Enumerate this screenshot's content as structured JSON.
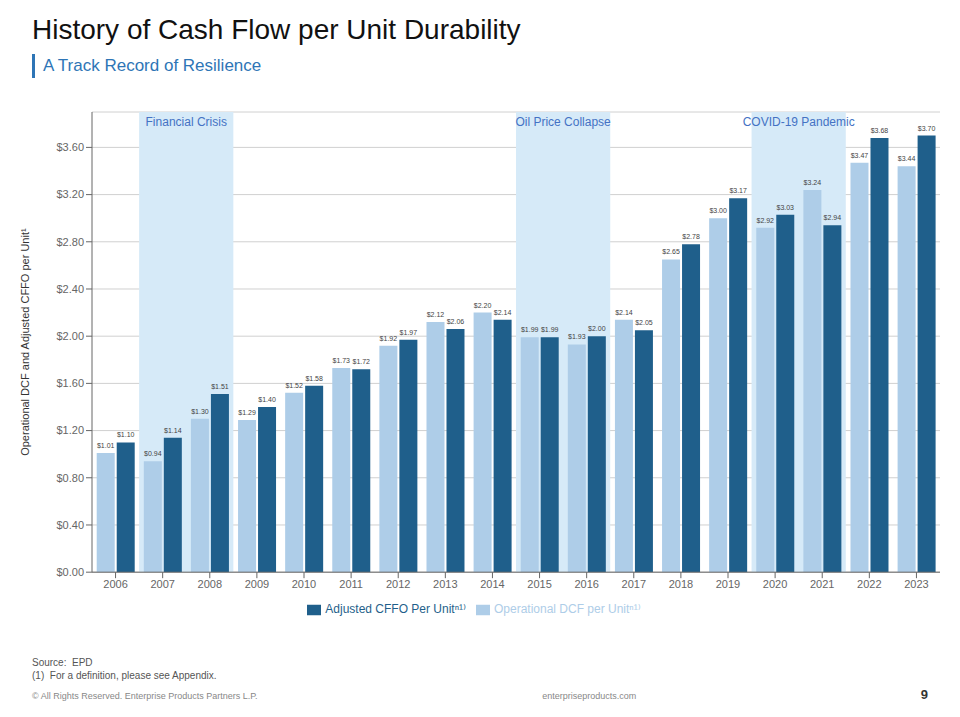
{
  "chart_data": {
    "type": "bar",
    "title": "History of Cash Flow per Unit Durability",
    "subtitle": "A Track Record of Resilience",
    "y_label": "Operational DCF and Adjusted CFFO per Unit¹",
    "categories": [
      "2006",
      "2007",
      "2008",
      "2009",
      "2010",
      "2011",
      "2012",
      "2013",
      "2014",
      "2015",
      "2016",
      "2017",
      "2018",
      "2019",
      "2020",
      "2021",
      "2022",
      "2023"
    ],
    "series": [
      {
        "name": "Operational DCF per Unitⁿ¹⁾",
        "color": "#aecde8",
        "values": [
          1.01,
          0.94,
          1.3,
          1.29,
          1.52,
          1.73,
          1.92,
          2.12,
          2.2,
          1.99,
          1.93,
          2.14,
          2.65,
          3.0,
          2.92,
          3.24,
          3.47,
          3.44
        ],
        "value_labels": [
          "$1.01",
          "$0.94",
          "$1.30",
          "$1.29",
          "$1.52",
          "$1.73",
          "$1.92",
          "$2.12",
          "$2.20",
          "$1.99",
          "$1.93",
          "$2.14",
          "$2.65",
          "$3.00",
          "$2.92",
          "$3.24",
          "$3.47",
          "$3.44"
        ]
      },
      {
        "name": "Adjusted CFFO Per Unitⁿ¹⁾",
        "color": "#1f5f8b",
        "values": [
          1.1,
          1.14,
          1.51,
          1.4,
          1.58,
          1.72,
          1.97,
          2.06,
          2.14,
          1.99,
          2.0,
          2.05,
          2.78,
          3.17,
          3.03,
          2.94,
          3.68,
          3.7
        ],
        "value_labels": [
          "$1.10",
          "$1.14",
          "$1.51",
          "$1.40",
          "$1.58",
          "$1.72",
          "$1.97",
          "$2.06",
          "$2.14",
          "$1.99",
          "$2.00",
          "$2.05",
          "$2.78",
          "$3.17",
          "$3.03",
          "$2.94",
          "$3.68",
          "$3.70"
        ]
      }
    ],
    "ylim": [
      0,
      3.9
    ],
    "yticks": [
      {
        "value": 0.0,
        "label": "$0.00"
      },
      {
        "value": 0.4,
        "label": "$0.40"
      },
      {
        "value": 0.8,
        "label": "$0.80"
      },
      {
        "value": 1.2,
        "label": "$1.20"
      },
      {
        "value": 1.6,
        "label": "$1.60"
      },
      {
        "value": 2.0,
        "label": "$2.00"
      },
      {
        "value": 2.4,
        "label": "$2.40"
      },
      {
        "value": 2.8,
        "label": "$2.80"
      },
      {
        "value": 3.2,
        "label": "$3.20"
      },
      {
        "value": 3.6,
        "label": "$3.60"
      }
    ],
    "grid": true,
    "legend": "bottom",
    "data_labels": true,
    "annotations": [
      {
        "text": "Financial Crisis",
        "x_start": 2006.5,
        "x_end": 2008.5,
        "color": "#d6eaf8"
      },
      {
        "text": "Oil Price Collapse",
        "x_start": 2014.5,
        "x_end": 2016.5,
        "color": "#d6eaf8"
      },
      {
        "text": "COVID-19 Pandemic",
        "x_start": 2019.5,
        "x_end": 2021.5,
        "color": "#d6eaf8"
      }
    ],
    "footer": [
      "Source:  EPD",
      "(1)  For a definition, please see Appendix.",
      "© All Rights Reserved. Enterprise Products Partners L.P.",
      "enterpriseproducts.com",
      "9"
    ]
  }
}
